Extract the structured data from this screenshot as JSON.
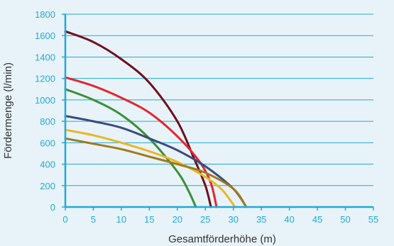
{
  "chart_data": {
    "type": "line",
    "xlabel": "Gesamtförderhöhe (m)",
    "ylabel": "Fördermenge (l/min)",
    "xlim": [
      0,
      55
    ],
    "ylim": [
      0,
      1800
    ],
    "x_ticks": [
      "0",
      "5",
      "10",
      "15",
      "20",
      "25",
      "30",
      "35",
      "40",
      "45",
      "50",
      "55"
    ],
    "y_ticks": [
      "0",
      "200",
      "400",
      "600",
      "800",
      "1000",
      "1200",
      "1400",
      "1600",
      "1800"
    ],
    "grid": "horizontal",
    "colors": {
      "background": "#e8f3f9",
      "axis": "#22a9d6",
      "grid": "#22a9d6",
      "tick_text": "#22a9d6",
      "title_text": "#333333"
    },
    "series": [
      {
        "color": "#6e0f1e",
        "x": [
          0,
          5,
          10,
          15,
          20,
          23,
          25,
          26
        ],
        "y": [
          1640,
          1540,
          1380,
          1160,
          800,
          450,
          200,
          0
        ]
      },
      {
        "color": "#e0282e",
        "x": [
          0,
          5,
          10,
          15,
          20,
          24,
          26,
          27
        ],
        "y": [
          1210,
          1130,
          1020,
          880,
          660,
          420,
          220,
          0
        ]
      },
      {
        "color": "#3a8f3a",
        "x": [
          0,
          5,
          10,
          15,
          20,
          22,
          23.3
        ],
        "y": [
          1100,
          1000,
          860,
          640,
          330,
          150,
          0
        ]
      },
      {
        "color": "#3a4b7c",
        "x": [
          0,
          5,
          10,
          15,
          20,
          25,
          30,
          32.3
        ],
        "y": [
          850,
          800,
          740,
          640,
          530,
          380,
          170,
          0
        ]
      },
      {
        "color": "#e8b823",
        "x": [
          0,
          5,
          10,
          15,
          20,
          25,
          28,
          30.3
        ],
        "y": [
          720,
          670,
          600,
          520,
          420,
          280,
          160,
          0
        ]
      },
      {
        "color": "#a07a1c",
        "x": [
          0,
          5,
          10,
          15,
          20,
          25,
          30,
          32.3
        ],
        "y": [
          640,
          590,
          540,
          470,
          400,
          320,
          170,
          0
        ]
      }
    ]
  }
}
